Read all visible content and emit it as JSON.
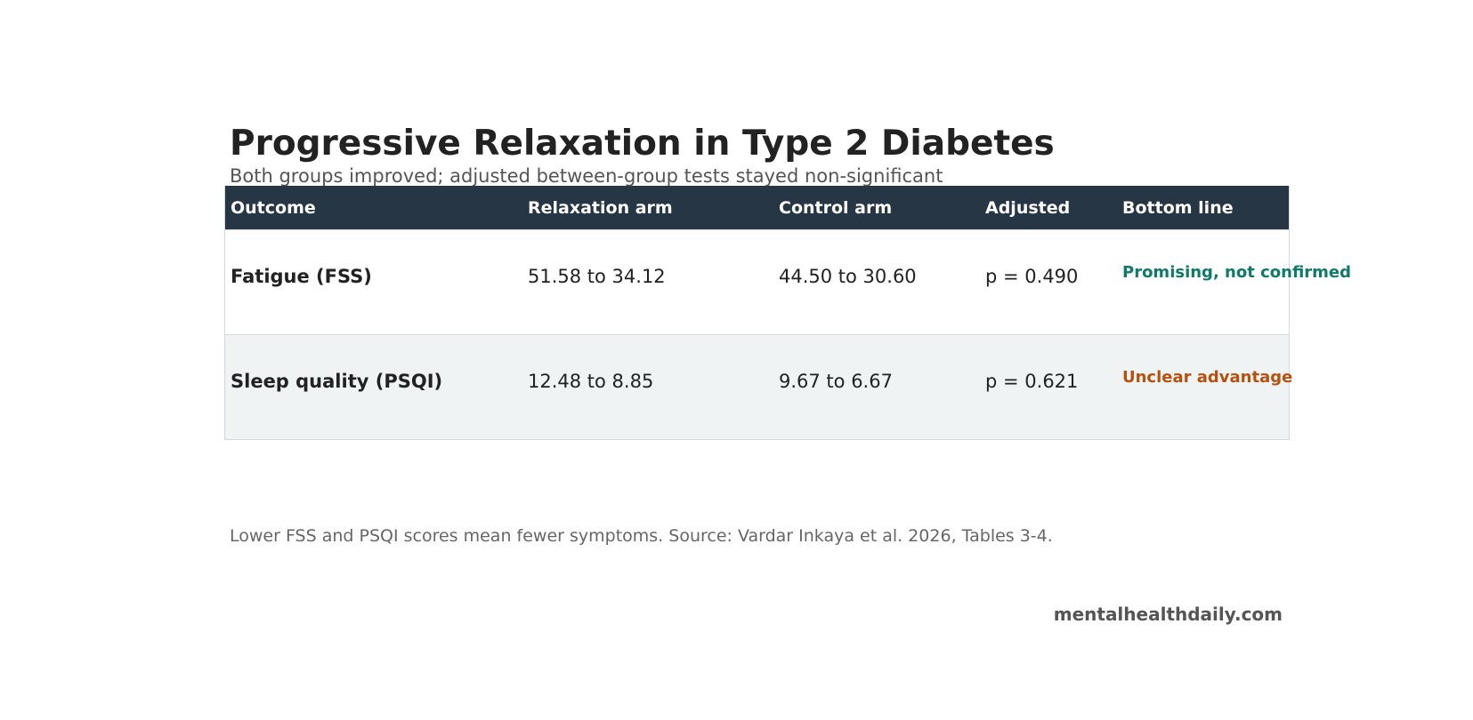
{
  "title": "Progressive Relaxation in Type 2 Diabetes",
  "subtitle": "Both groups improved; adjusted between-group tests stayed non-significant",
  "table": {
    "headers": [
      "Outcome",
      "Relaxation arm",
      "Control arm",
      "Adjusted",
      "Bottom line"
    ],
    "rows": [
      {
        "outcome": "Fatigue (FSS)",
        "relaxation": "51.58 to 34.12",
        "control": "44.50 to 30.60",
        "adjusted": "p = 0.490",
        "bottom_line": "Promising, not confirmed",
        "bottom_line_color": "#0f7a6c"
      },
      {
        "outcome": "Sleep quality (PSQI)",
        "relaxation": "12.48 to 8.85",
        "control": "9.67 to 6.67",
        "adjusted": "p = 0.621",
        "bottom_line": "Unclear advantage",
        "bottom_line_color": "#b5520f"
      }
    ]
  },
  "footnote": "Lower FSS and PSQI scores mean fewer symptoms. Source: Vardar Inkaya et al. 2026, Tables 3-4.",
  "brand": "mentalhealthdaily.com",
  "colors": {
    "header_bg": "#263645",
    "alt_row_bg": "#eff3f4"
  }
}
